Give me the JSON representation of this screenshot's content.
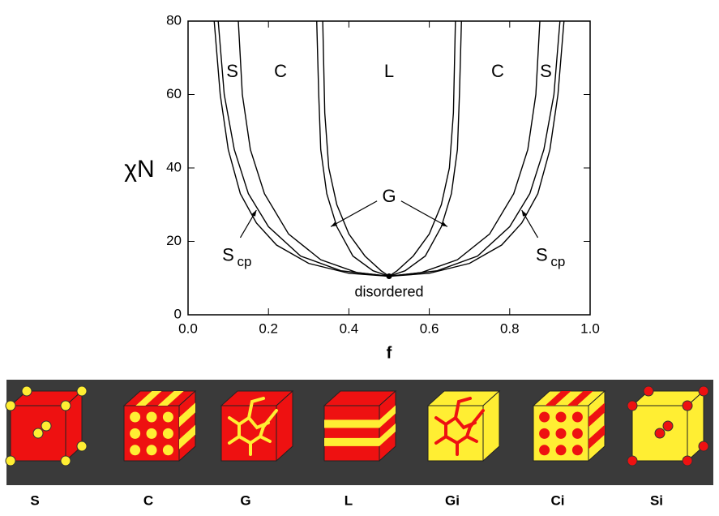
{
  "chart_data": {
    "type": "line",
    "xlabel": "f",
    "ylabel": "χN",
    "xlim": [
      0,
      1
    ],
    "ylim": [
      0,
      80
    ],
    "xticks": [
      {
        "value": 0,
        "label": "0.0"
      },
      {
        "value": 0.2,
        "label": "0.2"
      },
      {
        "value": 0.4,
        "label": "0.4"
      },
      {
        "value": 0.6,
        "label": "0.6"
      },
      {
        "value": 0.8,
        "label": "0.8"
      },
      {
        "value": 1,
        "label": "1.0"
      }
    ],
    "yticks": [
      0,
      20,
      40,
      60,
      80
    ],
    "series": [
      {
        "color": "#000000",
        "x": [
          0.065,
          0.08,
          0.1,
          0.13,
          0.17,
          0.22,
          0.3,
          0.4,
          0.5,
          0.6,
          0.7,
          0.78,
          0.83,
          0.87,
          0.9,
          0.92,
          0.935
        ],
        "values": [
          80,
          60,
          45,
          33,
          25,
          19,
          14,
          11.3,
          10.5,
          11.3,
          14,
          19,
          25,
          33,
          45,
          60,
          80
        ]
      },
      {
        "color": "#000000",
        "x": [
          0.075,
          0.09,
          0.115,
          0.15,
          0.2,
          0.28,
          0.38,
          0.5,
          0.62,
          0.72,
          0.8,
          0.85,
          0.885,
          0.91,
          0.925
        ],
        "values": [
          80,
          60,
          45,
          33,
          24,
          16,
          12,
          10.5,
          12,
          16,
          24,
          33,
          45,
          60,
          80
        ]
      },
      {
        "color": "#000000",
        "x": [
          0.125,
          0.135,
          0.155,
          0.19,
          0.25,
          0.33,
          0.42,
          0.5,
          0.58,
          0.67,
          0.75,
          0.81,
          0.845,
          0.865,
          0.875
        ],
        "values": [
          80,
          60,
          45,
          33,
          22,
          15,
          11.5,
          10.5,
          11.5,
          15,
          22,
          33,
          45,
          60,
          80
        ]
      },
      {
        "color": "#000000",
        "x": [
          0.32,
          0.325,
          0.33,
          0.345,
          0.37,
          0.41,
          0.46,
          0.5,
          0.54,
          0.59,
          0.63,
          0.655,
          0.67,
          0.675,
          0.68
        ],
        "values": [
          80,
          60,
          45,
          33,
          24,
          16,
          12,
          10.5,
          12,
          16,
          24,
          33,
          45,
          60,
          80
        ]
      },
      {
        "color": "#000000",
        "x": [
          0.335,
          0.34,
          0.35,
          0.37,
          0.4,
          0.44,
          0.48,
          0.5,
          0.52,
          0.56,
          0.6,
          0.63,
          0.65,
          0.66,
          0.665
        ],
        "values": [
          80,
          55,
          40,
          30,
          22,
          16,
          12,
          10.5,
          12,
          16,
          22,
          30,
          40,
          55,
          80
        ]
      }
    ],
    "critical_point": {
      "x": 0.5,
      "y": 10.5
    },
    "annotations": [
      "S",
      "C",
      "L",
      "C",
      "S",
      "G",
      "disordered"
    ],
    "subscript_labels": [
      {
        "text": "S",
        "sub": "cp"
      },
      {
        "text": "S",
        "sub": "cp"
      }
    ]
  },
  "structures": [
    "S",
    "C",
    "G",
    "L",
    "Gi",
    "Ci",
    "Si"
  ]
}
